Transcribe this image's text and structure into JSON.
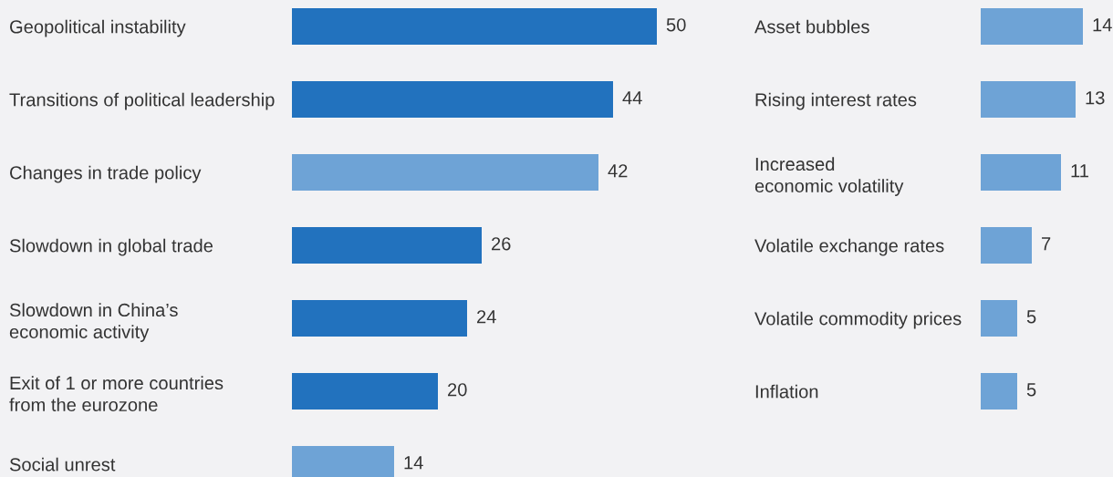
{
  "chart_data": [
    {
      "type": "bar",
      "orientation": "horizontal",
      "data_labels": true,
      "tick_labels": "y",
      "categories": [
        "Geopolitical instability",
        "Transitions of political leadership",
        "Changes in trade policy",
        "Slowdown in global trade",
        "Slowdown in China’s\neconomic activity",
        "Exit of 1 or more countries\nfrom the eurozone",
        "Social unrest"
      ],
      "values": [
        50,
        44,
        42,
        26,
        24,
        20,
        14
      ],
      "colors": [
        "#2272be",
        "#2272be",
        "#6ea3d6",
        "#2272be",
        "#2272be",
        "#2272be",
        "#6ea3d6"
      ]
    },
    {
      "type": "bar",
      "orientation": "horizontal",
      "data_labels": true,
      "tick_labels": "y",
      "categories": [
        "Asset bubbles",
        "Rising interest rates",
        "Increased\neconomic volatility",
        "Volatile exchange rates",
        "Volatile commodity prices",
        "Inflation"
      ],
      "values": [
        14,
        13,
        11,
        7,
        5,
        5
      ],
      "colors": [
        "#6ea3d6",
        "#6ea3d6",
        "#6ea3d6",
        "#6ea3d6",
        "#6ea3d6",
        "#6ea3d6"
      ]
    }
  ]
}
